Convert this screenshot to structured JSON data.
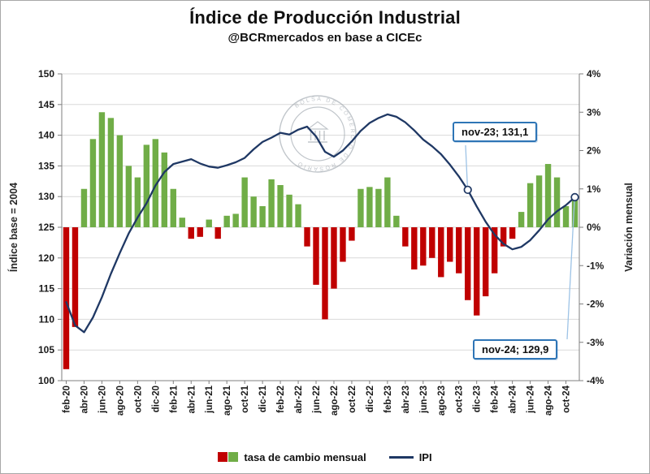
{
  "page": {
    "title": "Índice de Producción Industrial",
    "subtitle": "@BCRmercados en base a CICEc"
  },
  "chart_data": {
    "type": "combo",
    "title": "Índice de Producción Industrial",
    "subtitle": "@BCRmercados en base a CICEc",
    "watermark": "BOLSA DE COMERCIO DE ROSARIO",
    "months": [
      "feb-20",
      "mar-20",
      "abr-20",
      "may-20",
      "jun-20",
      "jul-20",
      "ago-20",
      "sep-20",
      "oct-20",
      "nov-20",
      "dic-20",
      "ene-21",
      "feb-21",
      "mar-21",
      "abr-21",
      "may-21",
      "jun-21",
      "jul-21",
      "ago-21",
      "sep-21",
      "oct-21",
      "nov-21",
      "dic-21",
      "ene-22",
      "feb-22",
      "mar-22",
      "abr-22",
      "may-22",
      "jun-22",
      "jul-22",
      "ago-22",
      "sep-22",
      "oct-22",
      "nov-22",
      "dic-22",
      "ene-23",
      "feb-23",
      "mar-23",
      "abr-23",
      "may-23",
      "jun-23",
      "jul-23",
      "ago-23",
      "sep-23",
      "oct-23",
      "nov-23",
      "dic-23",
      "ene-24",
      "feb-24",
      "mar-24",
      "abr-24",
      "may-24",
      "jun-24",
      "jul-24",
      "ago-24",
      "sep-24",
      "oct-24",
      "nov-24"
    ],
    "x_tick_labels": [
      "feb-20",
      "abr-20",
      "jun-20",
      "ago-20",
      "oct-20",
      "dic-20",
      "feb-21",
      "abr-21",
      "jun-21",
      "ago-21",
      "oct-21",
      "dic-21",
      "feb-22",
      "abr-22",
      "jun-22",
      "ago-22",
      "oct-22",
      "dic-22",
      "feb-23",
      "abr-23",
      "jun-23",
      "ago-23",
      "oct-23",
      "dic-23",
      "feb-24",
      "abr-24",
      "jun-24",
      "ago-24",
      "oct-24"
    ],
    "bar_series": {
      "name": "tasa de cambio mensual",
      "positive_color": "#70ad47",
      "negative_color": "#c00000",
      "values": [
        -3.7,
        -2.6,
        1.0,
        2.3,
        3.0,
        2.85,
        2.4,
        1.6,
        1.3,
        2.15,
        2.3,
        1.95,
        1.0,
        0.25,
        -0.3,
        -0.25,
        0.2,
        -0.3,
        0.3,
        0.35,
        1.3,
        0.8,
        0.55,
        1.25,
        1.1,
        0.85,
        0.6,
        -0.5,
        -1.5,
        -2.4,
        -1.6,
        -0.9,
        -0.35,
        1.0,
        1.05,
        1.0,
        1.3,
        0.3,
        -0.5,
        -1.1,
        -1.0,
        -0.8,
        -1.3,
        -0.9,
        -1.2,
        -1.9,
        -2.3,
        -1.8,
        -1.2,
        -0.5,
        -0.3,
        0.4,
        1.15,
        1.35,
        1.65,
        1.3,
        0.55,
        0.8
      ]
    },
    "line_series": {
      "name": "IPI",
      "color": "#1f3864",
      "values": [
        112.8,
        109.0,
        107.9,
        110.3,
        113.6,
        117.4,
        120.8,
        124.0,
        126.6,
        128.9,
        131.8,
        134.0,
        135.3,
        135.7,
        136.1,
        135.4,
        134.9,
        134.7,
        135.1,
        135.6,
        136.3,
        137.7,
        138.9,
        139.6,
        140.4,
        140.1,
        140.9,
        141.4,
        139.8,
        137.3,
        136.5,
        137.5,
        139.0,
        140.7,
        142.0,
        142.8,
        143.4,
        143.0,
        142.1,
        140.8,
        139.3,
        138.2,
        136.9,
        135.2,
        133.3,
        131.1,
        128.4,
        125.9,
        123.8,
        122.3,
        121.4,
        121.8,
        122.9,
        124.5,
        126.3,
        127.6,
        128.6,
        129.9
      ]
    },
    "left_axis": {
      "label": "Índice base = 2004",
      "min": 100,
      "max": 150,
      "step": 5,
      "tick_labels": [
        "100",
        "105",
        "110",
        "115",
        "120",
        "125",
        "130",
        "135",
        "140",
        "145",
        "150"
      ]
    },
    "right_axis": {
      "label": "Variación mensual",
      "min": -4,
      "max": 4,
      "step": 1,
      "tick_labels": [
        "-4%",
        "-3%",
        "-2%",
        "-1%",
        "0%",
        "1%",
        "2%",
        "3%",
        "4%"
      ]
    },
    "annotations": [
      {
        "label": "nov-23; 131,1",
        "month": "nov-23",
        "value": 131.1
      },
      {
        "label": "nov-24; 129,9",
        "month": "nov-24",
        "value": 129.9
      }
    ],
    "legend": {
      "bar_label": "tasa de cambio mensual",
      "line_label": "IPI",
      "position": "bottom"
    },
    "colors": {
      "grid": "#d9d9d9",
      "axis": "#7f7f7f",
      "callout_border": "#2e75b6",
      "leader_line": "#9dc3e6",
      "watermark": "#99a1a9"
    }
  }
}
